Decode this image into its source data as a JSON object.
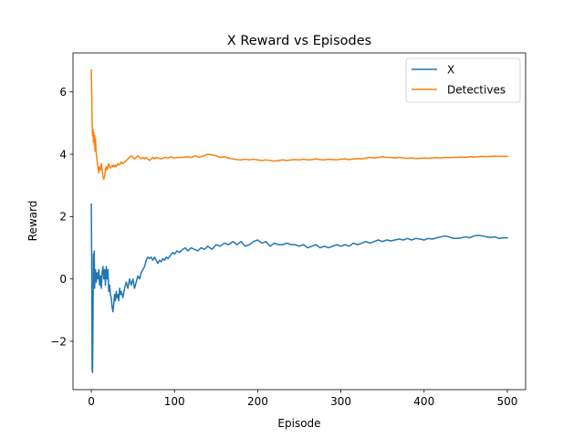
{
  "chart_data": {
    "type": "line",
    "title": "X Reward vs Episodes",
    "xlabel": "Episode",
    "ylabel": "Reward",
    "xlim": [
      -22,
      522
    ],
    "ylim": [
      -3.55,
      7.25
    ],
    "xticks": [
      0,
      100,
      200,
      300,
      400,
      500
    ],
    "yticks": [
      -2,
      0,
      2,
      4,
      6
    ],
    "xtick_labels": [
      "0",
      "100",
      "200",
      "300",
      "400",
      "500"
    ],
    "ytick_labels": [
      "−2",
      "0",
      "2",
      "4",
      "6"
    ],
    "grid": false,
    "legend_position": "top-right",
    "series": [
      {
        "name": "X",
        "color": "#1f77b4",
        "points": [
          [
            0,
            2.4
          ],
          [
            0.5,
            0.5
          ],
          [
            1,
            -2.9
          ],
          [
            1.5,
            -3.0
          ],
          [
            2,
            -1.5
          ],
          [
            2.5,
            0.8
          ],
          [
            3,
            0.1
          ],
          [
            3.5,
            0.9
          ],
          [
            4,
            -0.3
          ],
          [
            5,
            0.3
          ],
          [
            6,
            -0.1
          ],
          [
            7,
            0.2
          ],
          [
            8,
            0.0
          ],
          [
            9,
            0.3
          ],
          [
            10,
            -0.2
          ],
          [
            11,
            0.1
          ],
          [
            12,
            -0.3
          ],
          [
            13,
            0.2
          ],
          [
            14,
            0.4
          ],
          [
            15,
            0.0
          ],
          [
            16,
            0.3
          ],
          [
            17,
            -0.2
          ],
          [
            18,
            0.4
          ],
          [
            19,
            0.0
          ],
          [
            20,
            0.3
          ],
          [
            21,
            -0.4
          ],
          [
            22,
            -0.2
          ],
          [
            23,
            -0.5
          ],
          [
            24,
            -0.6
          ],
          [
            25,
            -0.9
          ],
          [
            26,
            -1.05
          ],
          [
            27,
            -0.8
          ],
          [
            28,
            -0.5
          ],
          [
            29,
            -0.7
          ],
          [
            30,
            -0.4
          ],
          [
            31,
            -0.6
          ],
          [
            32,
            -0.5
          ],
          [
            33,
            -0.7
          ],
          [
            34,
            -0.3
          ],
          [
            35,
            -0.5
          ],
          [
            36,
            -0.4
          ],
          [
            38,
            -0.6
          ],
          [
            40,
            -0.3
          ],
          [
            42,
            -0.1
          ],
          [
            44,
            -0.3
          ],
          [
            46,
            0.0
          ],
          [
            48,
            -0.2
          ],
          [
            50,
            0.0
          ],
          [
            52,
            -0.3
          ],
          [
            54,
            -0.1
          ],
          [
            56,
            0.1
          ],
          [
            58,
            0.0
          ],
          [
            60,
            0.2
          ],
          [
            62,
            0.3
          ],
          [
            64,
            0.4
          ],
          [
            66,
            0.6
          ],
          [
            68,
            0.7
          ],
          [
            70,
            0.65
          ],
          [
            72,
            0.7
          ],
          [
            74,
            0.6
          ],
          [
            76,
            0.7
          ],
          [
            78,
            0.6
          ],
          [
            80,
            0.5
          ],
          [
            82,
            0.6
          ],
          [
            84,
            0.55
          ],
          [
            86,
            0.65
          ],
          [
            88,
            0.6
          ],
          [
            90,
            0.7
          ],
          [
            92,
            0.65
          ],
          [
            95,
            0.75
          ],
          [
            98,
            0.85
          ],
          [
            100,
            0.8
          ],
          [
            103,
            0.9
          ],
          [
            106,
            0.85
          ],
          [
            110,
            0.95
          ],
          [
            113,
            1.0
          ],
          [
            116,
            0.9
          ],
          [
            120,
            1.0
          ],
          [
            124,
            0.95
          ],
          [
            128,
            0.9
          ],
          [
            132,
            1.0
          ],
          [
            136,
            0.95
          ],
          [
            140,
            1.05
          ],
          [
            145,
            0.95
          ],
          [
            150,
            1.1
          ],
          [
            155,
            1.05
          ],
          [
            160,
            1.15
          ],
          [
            165,
            1.1
          ],
          [
            170,
            1.2
          ],
          [
            175,
            1.1
          ],
          [
            180,
            1.2
          ],
          [
            185,
            1.05
          ],
          [
            190,
            1.1
          ],
          [
            195,
            1.2
          ],
          [
            200,
            1.25
          ],
          [
            205,
            1.15
          ],
          [
            210,
            1.2
          ],
          [
            215,
            1.05
          ],
          [
            220,
            1.15
          ],
          [
            225,
            1.1
          ],
          [
            230,
            1.1
          ],
          [
            235,
            1.15
          ],
          [
            240,
            1.1
          ],
          [
            245,
            1.1
          ],
          [
            250,
            1.05
          ],
          [
            255,
            1.1
          ],
          [
            260,
            1.0
          ],
          [
            265,
            1.05
          ],
          [
            270,
            1.1
          ],
          [
            275,
            1.0
          ],
          [
            280,
            1.05
          ],
          [
            285,
            1.0
          ],
          [
            290,
            1.05
          ],
          [
            295,
            1.1
          ],
          [
            300,
            1.05
          ],
          [
            305,
            1.1
          ],
          [
            310,
            1.05
          ],
          [
            315,
            1.15
          ],
          [
            320,
            1.1
          ],
          [
            325,
            1.15
          ],
          [
            330,
            1.2
          ],
          [
            335,
            1.15
          ],
          [
            340,
            1.2
          ],
          [
            345,
            1.25
          ],
          [
            350,
            1.2
          ],
          [
            355,
            1.25
          ],
          [
            360,
            1.22
          ],
          [
            365,
            1.25
          ],
          [
            370,
            1.28
          ],
          [
            375,
            1.25
          ],
          [
            380,
            1.3
          ],
          [
            385,
            1.25
          ],
          [
            390,
            1.3
          ],
          [
            395,
            1.28
          ],
          [
            400,
            1.25
          ],
          [
            405,
            1.3
          ],
          [
            410,
            1.28
          ],
          [
            415,
            1.32
          ],
          [
            420,
            1.35
          ],
          [
            425,
            1.38
          ],
          [
            430,
            1.35
          ],
          [
            435,
            1.3
          ],
          [
            440,
            1.3
          ],
          [
            445,
            1.32
          ],
          [
            450,
            1.35
          ],
          [
            455,
            1.32
          ],
          [
            460,
            1.38
          ],
          [
            465,
            1.4
          ],
          [
            470,
            1.38
          ],
          [
            475,
            1.35
          ],
          [
            480,
            1.33
          ],
          [
            485,
            1.35
          ],
          [
            490,
            1.3
          ],
          [
            495,
            1.32
          ],
          [
            500,
            1.32
          ]
        ]
      },
      {
        "name": "Detectives",
        "color": "#ff7f0e",
        "points": [
          [
            0,
            6.7
          ],
          [
            0.5,
            6.0
          ],
          [
            1,
            5.0
          ],
          [
            1.5,
            4.6
          ],
          [
            2,
            4.8
          ],
          [
            2.5,
            4.4
          ],
          [
            3,
            4.7
          ],
          [
            3.5,
            4.3
          ],
          [
            4,
            4.6
          ],
          [
            4.5,
            4.1
          ],
          [
            5,
            4.5
          ],
          [
            6,
            4.0
          ],
          [
            7,
            3.8
          ],
          [
            8,
            3.6
          ],
          [
            9,
            3.4
          ],
          [
            10,
            3.6
          ],
          [
            11,
            3.5
          ],
          [
            12,
            3.7
          ],
          [
            13,
            3.5
          ],
          [
            14,
            3.3
          ],
          [
            15,
            3.2
          ],
          [
            16,
            3.3
          ],
          [
            17,
            3.5
          ],
          [
            18,
            3.6
          ],
          [
            19,
            3.5
          ],
          [
            20,
            3.6
          ],
          [
            21,
            3.7
          ],
          [
            22,
            3.6
          ],
          [
            23,
            3.55
          ],
          [
            24,
            3.6
          ],
          [
            25,
            3.65
          ],
          [
            26,
            3.6
          ],
          [
            27,
            3.65
          ],
          [
            28,
            3.6
          ],
          [
            29,
            3.65
          ],
          [
            30,
            3.6
          ],
          [
            32,
            3.7
          ],
          [
            34,
            3.65
          ],
          [
            36,
            3.75
          ],
          [
            38,
            3.7
          ],
          [
            40,
            3.75
          ],
          [
            42,
            3.8
          ],
          [
            44,
            3.85
          ],
          [
            46,
            3.9
          ],
          [
            48,
            3.95
          ],
          [
            50,
            3.9
          ],
          [
            52,
            3.85
          ],
          [
            54,
            3.9
          ],
          [
            56,
            3.95
          ],
          [
            58,
            3.9
          ],
          [
            60,
            3.85
          ],
          [
            62,
            3.9
          ],
          [
            64,
            3.85
          ],
          [
            66,
            3.9
          ],
          [
            68,
            3.85
          ],
          [
            70,
            3.8
          ],
          [
            72,
            3.85
          ],
          [
            74,
            3.9
          ],
          [
            76,
            3.85
          ],
          [
            78,
            3.9
          ],
          [
            80,
            3.88
          ],
          [
            84,
            3.85
          ],
          [
            88,
            3.9
          ],
          [
            92,
            3.88
          ],
          [
            96,
            3.92
          ],
          [
            100,
            3.88
          ],
          [
            105,
            3.9
          ],
          [
            110,
            3.9
          ],
          [
            115,
            3.92
          ],
          [
            120,
            3.9
          ],
          [
            125,
            3.95
          ],
          [
            130,
            3.9
          ],
          [
            135,
            3.95
          ],
          [
            140,
            4.0
          ],
          [
            145,
            3.98
          ],
          [
            150,
            3.95
          ],
          [
            155,
            3.9
          ],
          [
            160,
            3.92
          ],
          [
            165,
            3.88
          ],
          [
            170,
            3.85
          ],
          [
            175,
            3.83
          ],
          [
            180,
            3.82
          ],
          [
            185,
            3.84
          ],
          [
            190,
            3.82
          ],
          [
            195,
            3.84
          ],
          [
            200,
            3.82
          ],
          [
            205,
            3.8
          ],
          [
            210,
            3.82
          ],
          [
            215,
            3.8
          ],
          [
            220,
            3.78
          ],
          [
            225,
            3.8
          ],
          [
            230,
            3.82
          ],
          [
            235,
            3.8
          ],
          [
            240,
            3.82
          ],
          [
            245,
            3.83
          ],
          [
            250,
            3.82
          ],
          [
            255,
            3.84
          ],
          [
            260,
            3.82
          ],
          [
            265,
            3.83
          ],
          [
            270,
            3.85
          ],
          [
            275,
            3.83
          ],
          [
            280,
            3.82
          ],
          [
            285,
            3.84
          ],
          [
            290,
            3.83
          ],
          [
            295,
            3.82
          ],
          [
            300,
            3.84
          ],
          [
            305,
            3.85
          ],
          [
            310,
            3.83
          ],
          [
            315,
            3.85
          ],
          [
            320,
            3.86
          ],
          [
            325,
            3.85
          ],
          [
            330,
            3.88
          ],
          [
            335,
            3.9
          ],
          [
            340,
            3.88
          ],
          [
            345,
            3.9
          ],
          [
            350,
            3.92
          ],
          [
            355,
            3.9
          ],
          [
            360,
            3.9
          ],
          [
            365,
            3.88
          ],
          [
            370,
            3.9
          ],
          [
            375,
            3.88
          ],
          [
            380,
            3.87
          ],
          [
            385,
            3.88
          ],
          [
            390,
            3.86
          ],
          [
            395,
            3.87
          ],
          [
            400,
            3.88
          ],
          [
            405,
            3.87
          ],
          [
            410,
            3.88
          ],
          [
            415,
            3.89
          ],
          [
            420,
            3.88
          ],
          [
            425,
            3.9
          ],
          [
            430,
            3.89
          ],
          [
            435,
            3.9
          ],
          [
            440,
            3.9
          ],
          [
            445,
            3.91
          ],
          [
            450,
            3.9
          ],
          [
            455,
            3.92
          ],
          [
            460,
            3.91
          ],
          [
            465,
            3.92
          ],
          [
            470,
            3.93
          ],
          [
            475,
            3.92
          ],
          [
            480,
            3.93
          ],
          [
            485,
            3.94
          ],
          [
            490,
            3.93
          ],
          [
            495,
            3.93
          ],
          [
            500,
            3.93
          ]
        ]
      }
    ]
  }
}
